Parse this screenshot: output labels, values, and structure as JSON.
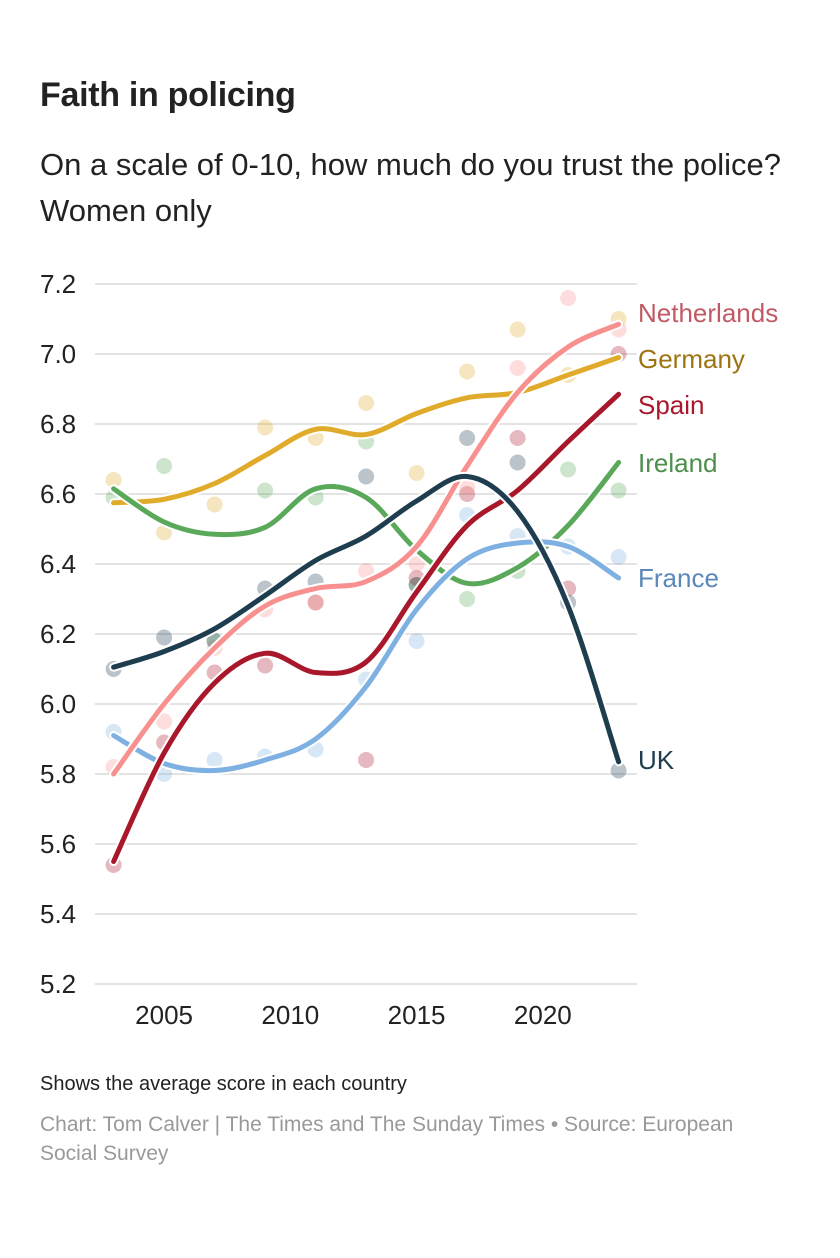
{
  "header": {
    "title": "Faith in policing",
    "subtitle": "On a scale of 0-10, how much do you trust the police? Women only"
  },
  "footer": {
    "note": "Shows the average score in each country",
    "credit": "Chart: Tom Calver | The Times and The Sunday Times • Source: European Social Survey"
  },
  "chart_data": {
    "type": "line",
    "title": "Faith in policing",
    "subtitle": "On a scale of 0-10, how much do you trust the police? Women only",
    "xlabel": "",
    "ylabel": "",
    "xlim": [
      2003,
      2023
    ],
    "ylim": [
      5.2,
      7.2
    ],
    "x_ticks": [
      2005,
      2010,
      2015,
      2020
    ],
    "x_tick_labels": [
      "2005",
      "2010",
      "2015",
      "2020"
    ],
    "y_ticks": [
      5.2,
      5.4,
      5.6,
      5.8,
      6.0,
      6.2,
      6.4,
      6.6,
      6.8,
      7.0,
      7.2
    ],
    "y_tick_labels": [
      "5.2",
      "5.4",
      "5.6",
      "5.8",
      "6.0",
      "6.2",
      "6.4",
      "6.6",
      "6.8",
      "7.0",
      "7.2"
    ],
    "grid": "horizontal",
    "legend": "direct labels at right end of lines",
    "x": [
      2003,
      2005,
      2007,
      2009,
      2011,
      2013,
      2015,
      2017,
      2019,
      2021,
      2023
    ],
    "series": [
      {
        "name": "Germany",
        "line_color": "#e0ab2a",
        "label_color": "#9e7413",
        "trend": [
          6.575,
          6.585,
          6.63,
          6.71,
          6.785,
          6.77,
          6.83,
          6.875,
          6.89,
          6.94,
          6.99
        ],
        "points": [
          6.64,
          6.49,
          6.57,
          6.79,
          6.76,
          6.86,
          6.66,
          6.95,
          7.07,
          6.94,
          7.1
        ]
      },
      {
        "name": "Ireland",
        "line_color": "#5aa85a",
        "label_color": "#4c8f4c",
        "trend": [
          6.615,
          6.52,
          6.485,
          6.505,
          6.615,
          6.59,
          6.44,
          6.345,
          6.39,
          6.51,
          6.69
        ],
        "points": [
          6.59,
          6.68,
          6.18,
          6.61,
          6.59,
          6.75,
          6.34,
          6.3,
          6.38,
          6.67,
          6.61
        ]
      },
      {
        "name": "France",
        "line_color": "#7fb0e2",
        "label_color": "#5a88bb",
        "trend": [
          5.91,
          5.83,
          5.81,
          5.84,
          5.9,
          6.05,
          6.27,
          6.415,
          6.46,
          6.45,
          6.36
        ],
        "points": [
          5.92,
          5.8,
          5.84,
          5.85,
          5.87,
          6.07,
          6.18,
          6.54,
          6.48,
          6.45,
          6.42
        ]
      },
      {
        "name": "Spain",
        "line_color": "#a8182a",
        "label_color": "#a8182a",
        "trend": [
          5.55,
          5.86,
          6.06,
          6.145,
          6.09,
          6.12,
          6.32,
          6.51,
          6.61,
          6.75,
          6.885
        ],
        "points": [
          5.54,
          5.89,
          6.09,
          6.11,
          6.29,
          5.84,
          6.36,
          6.6,
          6.76,
          6.33,
          7.0
        ]
      },
      {
        "name": "Netherlands",
        "line_color": "#f7908f",
        "label_color": "#c05a64",
        "trend": [
          5.8,
          6.0,
          6.16,
          6.28,
          6.33,
          6.35,
          6.45,
          6.68,
          6.89,
          7.02,
          7.085
        ],
        "points": [
          5.82,
          5.95,
          6.16,
          6.27,
          6.29,
          6.38,
          6.4,
          6.62,
          6.96,
          7.16,
          7.07
        ]
      },
      {
        "name": "UK",
        "line_color": "#1e3d4e",
        "label_color": "#1e3d4e",
        "trend": [
          6.105,
          6.15,
          6.215,
          6.31,
          6.41,
          6.48,
          6.58,
          6.65,
          6.55,
          6.28,
          5.835
        ],
        "points": [
          6.1,
          6.19,
          6.18,
          6.33,
          6.35,
          6.65,
          6.34,
          6.76,
          6.69,
          6.29,
          5.81
        ]
      }
    ]
  }
}
